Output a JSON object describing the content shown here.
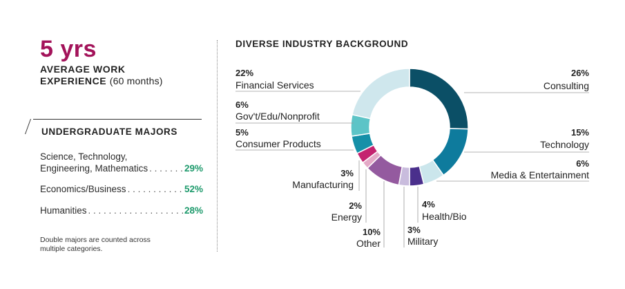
{
  "stat": {
    "value": "5 yrs",
    "caption_bold_line1": "AVERAGE WORK",
    "caption_bold_line2": "EXPERIENCE",
    "caption_light": "(60 months)"
  },
  "majors": {
    "heading": "UNDERGRADUATE MAJORS",
    "items": [
      {
        "label_line1": "Science, Technology,",
        "label_line2": "Engineering, Mathematics",
        "percent": "29%"
      },
      {
        "label_line1": "",
        "label_line2": "Economics/Business",
        "percent": "52%"
      },
      {
        "label_line1": "",
        "label_line2": "Humanities",
        "percent": "28%"
      }
    ],
    "footnote_line1": "Double majors are counted across",
    "footnote_line2": "multiple categories."
  },
  "colors": {
    "accent": "#a3135a",
    "percent_green": "#1e9a6c"
  },
  "chart_data": {
    "type": "pie",
    "title": "DIVERSE INDUSTRY BACKGROUND",
    "donut": true,
    "slices": [
      {
        "label": "Consulting",
        "value": 26,
        "pct_text": "26%",
        "color": "#0b4f66"
      },
      {
        "label": "Technology",
        "value": 15,
        "pct_text": "15%",
        "color": "#0e7b9d"
      },
      {
        "label": "Media & Entertainment",
        "value": 6,
        "pct_text": "6%",
        "color": "#cbe6ec"
      },
      {
        "label": "Health/Bio",
        "value": 4,
        "pct_text": "4%",
        "color": "#4a2f8c"
      },
      {
        "label": "Military",
        "value": 3,
        "pct_text": "3%",
        "color": "#c9bcdd"
      },
      {
        "label": "Other",
        "value": 10,
        "pct_text": "10%",
        "color": "#945a9f"
      },
      {
        "label": "Energy",
        "value": 2,
        "pct_text": "2%",
        "color": "#e4a9c7"
      },
      {
        "label": "Manufacturing",
        "value": 3,
        "pct_text": "3%",
        "color": "#c4236f"
      },
      {
        "label": "Consumer Products",
        "value": 5,
        "pct_text": "5%",
        "color": "#1590a8"
      },
      {
        "label": "Gov't/Edu/Nonprofit",
        "value": 6,
        "pct_text": "6%",
        "color": "#5cc4c7"
      },
      {
        "label": "Financial Services",
        "value": 22,
        "pct_text": "22%",
        "color": "#cfe7ed"
      }
    ]
  }
}
